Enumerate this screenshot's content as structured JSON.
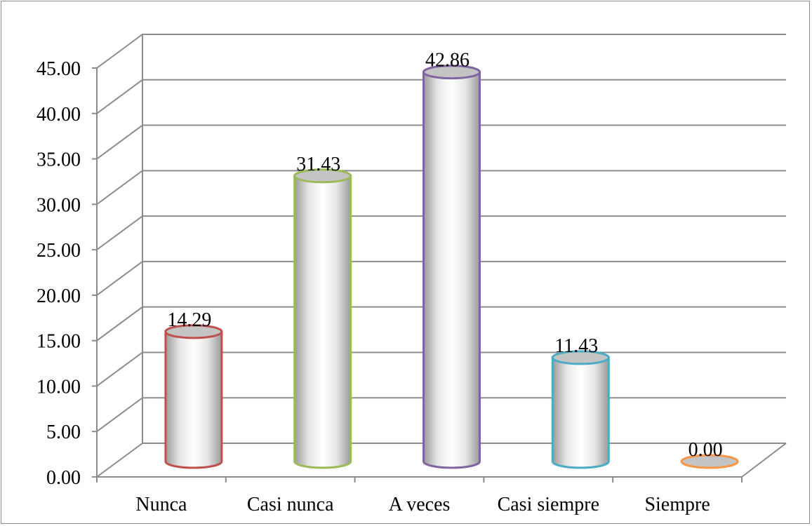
{
  "chart_data": {
    "type": "bar",
    "bar_style": "3d-cylinder",
    "categories": [
      "Nunca",
      "Casi nunca",
      "A veces",
      "Casi siempre",
      "Siempre"
    ],
    "values": [
      14.29,
      31.43,
      42.86,
      11.43,
      0.0
    ],
    "data_labels": [
      "14.29",
      "31.43",
      "42.86",
      "11.43",
      "0.00"
    ],
    "colors": [
      "#c0504d",
      "#9bbb59",
      "#8064a2",
      "#4bacc6",
      "#f79646"
    ],
    "title": "",
    "xlabel": "",
    "ylabel": "",
    "ylim": [
      0,
      45
    ],
    "ytick_labels": [
      "0.00",
      "5.00",
      "10.00",
      "15.00",
      "20.00",
      "25.00",
      "30.00",
      "35.00",
      "40.00",
      "45.00"
    ],
    "grid": true,
    "legend": "none"
  }
}
